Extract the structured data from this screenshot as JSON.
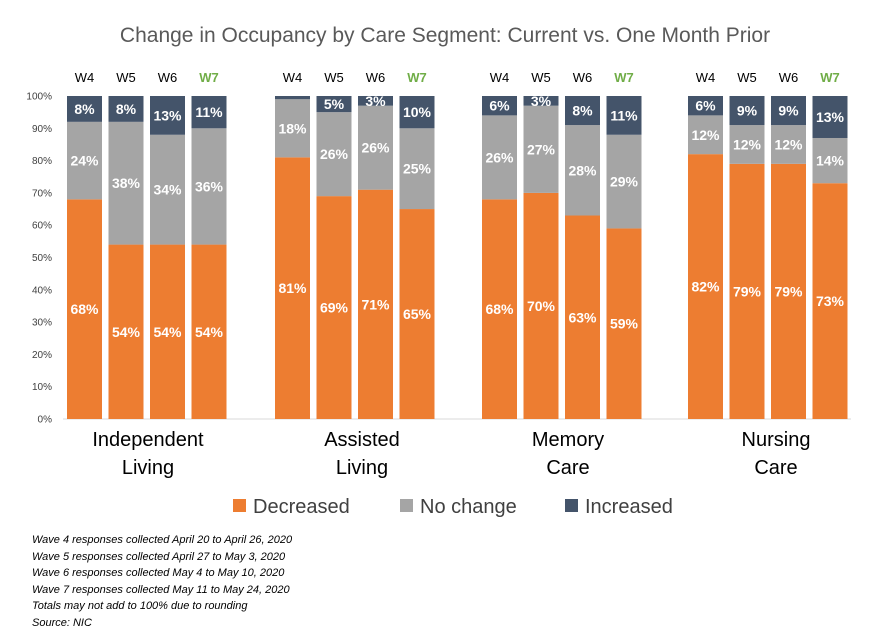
{
  "chart_data": {
    "type": "bar",
    "stacked": true,
    "title": "Change in Occupancy by Care Segment: Current vs. One Month Prior",
    "y_ticks": [
      "0%",
      "10%",
      "20%",
      "30%",
      "40%",
      "50%",
      "60%",
      "70%",
      "80%",
      "90%",
      "100%"
    ],
    "ylim": [
      0,
      100
    ],
    "highlight_wave": "W7",
    "legend_position": "bottom",
    "colors": {
      "Decreased": "#ed7d31",
      "No change": "#a5a5a5",
      "Increased": "#44546a",
      "highlight": "#70ad47"
    },
    "groups": [
      {
        "name_lines": [
          "Independent",
          "Living"
        ],
        "bars": [
          {
            "wave": "W4",
            "decreased": 68,
            "no_change": 24,
            "increased": 8,
            "labels": [
              "68%",
              "24%",
              "8%"
            ]
          },
          {
            "wave": "W5",
            "decreased": 54,
            "no_change": 38,
            "increased": 8,
            "labels": [
              "54%",
              "38%",
              "8%"
            ]
          },
          {
            "wave": "W6",
            "decreased": 54,
            "no_change": 34,
            "increased": 13,
            "labels": [
              "54%",
              "34%",
              "13%"
            ]
          },
          {
            "wave": "W7",
            "decreased": 54,
            "no_change": 36,
            "increased": 11,
            "labels": [
              "54%",
              "36%",
              "11%"
            ]
          }
        ]
      },
      {
        "name_lines": [
          "Assisted",
          "Living"
        ],
        "bars": [
          {
            "wave": "W4",
            "decreased": 81,
            "no_change": 18,
            "increased": 2,
            "labels": [
              "81%",
              "18%",
              ""
            ]
          },
          {
            "wave": "W5",
            "decreased": 69,
            "no_change": 26,
            "increased": 5,
            "labels": [
              "69%",
              "26%",
              "5%"
            ]
          },
          {
            "wave": "W6",
            "decreased": 71,
            "no_change": 26,
            "increased": 3,
            "labels": [
              "71%",
              "26%",
              "3%"
            ]
          },
          {
            "wave": "W7",
            "decreased": 65,
            "no_change": 25,
            "increased": 10,
            "labels": [
              "65%",
              "25%",
              "10%"
            ]
          }
        ]
      },
      {
        "name_lines": [
          "Memory",
          "Care"
        ],
        "bars": [
          {
            "wave": "W4",
            "decreased": 68,
            "no_change": 26,
            "increased": 6,
            "labels": [
              "68%",
              "26%",
              "6%"
            ]
          },
          {
            "wave": "W5",
            "decreased": 70,
            "no_change": 27,
            "increased": 3,
            "labels": [
              "70%",
              "27%",
              "3%"
            ]
          },
          {
            "wave": "W6",
            "decreased": 63,
            "no_change": 28,
            "increased": 8,
            "labels": [
              "63%",
              "28%",
              "8%"
            ]
          },
          {
            "wave": "W7",
            "decreased": 59,
            "no_change": 29,
            "increased": 11,
            "labels": [
              "59%",
              "29%",
              "11%"
            ]
          }
        ]
      },
      {
        "name_lines": [
          "Nursing",
          "Care"
        ],
        "bars": [
          {
            "wave": "W4",
            "decreased": 82,
            "no_change": 12,
            "increased": 6,
            "labels": [
              "82%",
              "12%",
              "6%"
            ]
          },
          {
            "wave": "W5",
            "decreased": 79,
            "no_change": 12,
            "increased": 9,
            "labels": [
              "79%",
              "12%",
              "9%"
            ]
          },
          {
            "wave": "W6",
            "decreased": 79,
            "no_change": 12,
            "increased": 9,
            "labels": [
              "79%",
              "12%",
              "9%"
            ]
          },
          {
            "wave": "W7",
            "decreased": 73,
            "no_change": 14,
            "increased": 13,
            "labels": [
              "73%",
              "14%",
              "13%"
            ]
          }
        ]
      }
    ],
    "legend": [
      {
        "key": "decreased",
        "label": "Decreased"
      },
      {
        "key": "no_change",
        "label": "No change"
      },
      {
        "key": "increased",
        "label": "Increased"
      }
    ]
  },
  "notes": [
    "Wave 4 responses collected April 20 to April 26, 2020",
    "Wave 5 responses collected April 27 to May 3, 2020",
    "Wave 6 responses collected May 4 to May 10, 2020",
    "Wave 7 responses collected May 11 to May 24, 2020",
    "Totals may not add to 100% due to rounding",
    "Source: NIC"
  ]
}
